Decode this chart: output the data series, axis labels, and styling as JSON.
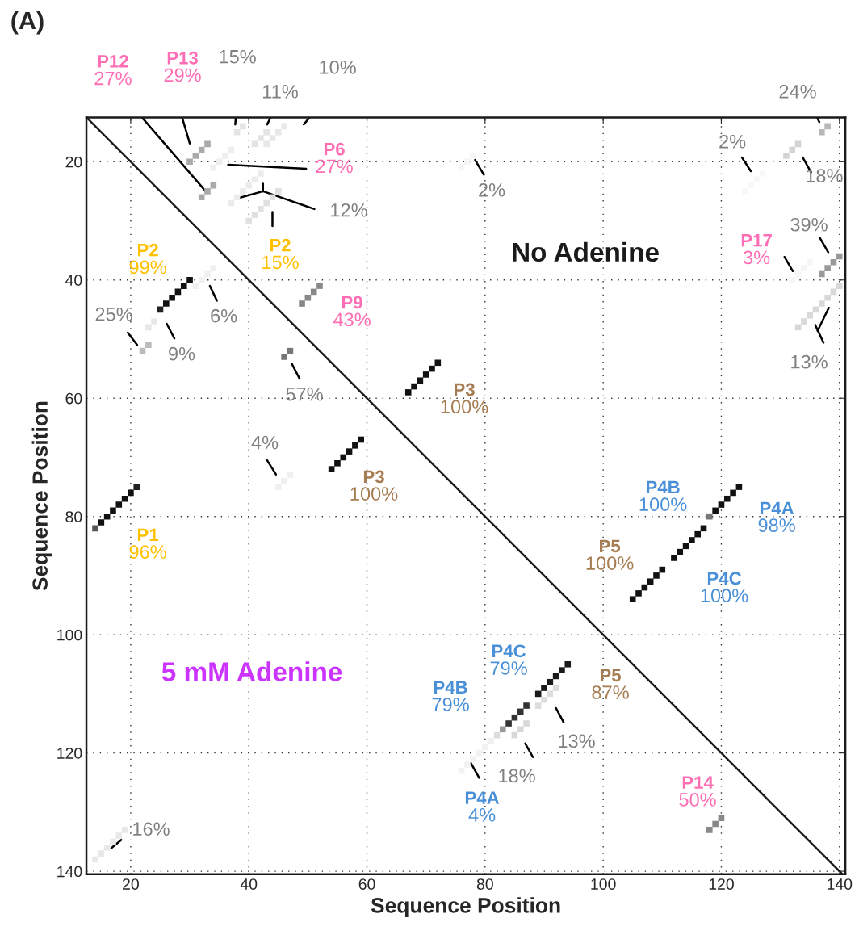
{
  "chart_data": {
    "type": "scatter",
    "title": "(A)",
    "xlabel": "Sequence Position",
    "ylabel": "Sequence Position",
    "xlim": [
      12.5,
      141
    ],
    "ylim": [
      140.5,
      12.5
    ],
    "xticks": [
      20,
      40,
      60,
      80,
      100,
      120,
      140
    ],
    "yticks": [
      20,
      40,
      60,
      80,
      100,
      120,
      140
    ],
    "grid": true,
    "series": [
      {
        "type": "line",
        "color": "#1a1a1a",
        "x": [
          12.5,
          140.5
        ],
        "values": [
          12.5,
          140.5
        ]
      },
      {
        "type": "scatter",
        "marker": "square",
        "x": [
          14,
          15,
          16,
          17,
          18,
          19,
          20,
          21
        ],
        "values": [
          82,
          81,
          80,
          79,
          78,
          77,
          76,
          75
        ],
        "colors": [
          "#555555",
          "#111111",
          "#111111",
          "#111111",
          "#111111",
          "#111111",
          "#111111",
          "#222222"
        ]
      },
      {
        "type": "scatter",
        "marker": "square",
        "x": [
          25,
          26,
          27,
          28,
          29,
          30
        ],
        "values": [
          45,
          44,
          43,
          42,
          41,
          40
        ],
        "colors": [
          "#222222",
          "#111111",
          "#111111",
          "#111111",
          "#111111",
          "#111111"
        ]
      },
      {
        "type": "scatter",
        "marker": "square",
        "x": [
          23,
          24
        ],
        "values": [
          48,
          47
        ],
        "colors": [
          "#e8e8e8",
          "#e8e8e8"
        ]
      },
      {
        "type": "scatter",
        "marker": "square",
        "x": [
          22,
          23
        ],
        "values": [
          52,
          51
        ],
        "colors": [
          "#bbbbbb",
          "#bbbbbb"
        ]
      },
      {
        "type": "scatter",
        "marker": "square",
        "x": [
          31,
          32,
          33,
          34
        ],
        "values": [
          41,
          40,
          39,
          38
        ],
        "colors": [
          "#f0f0f0",
          "#f0f0f0",
          "#f0f0f0",
          "#f0f0f0"
        ]
      },
      {
        "type": "scatter",
        "marker": "square",
        "x": [
          46,
          47
        ],
        "values": [
          53,
          52
        ],
        "colors": [
          "#777777",
          "#777777"
        ]
      },
      {
        "type": "scatter",
        "marker": "square",
        "x": [
          45,
          46,
          47
        ],
        "values": [
          75,
          74,
          73
        ],
        "colors": [
          "#f0f0f0",
          "#f0f0f0",
          "#f0f0f0"
        ]
      },
      {
        "type": "scatter",
        "marker": "square",
        "x": [
          54,
          55,
          56,
          57,
          58,
          59
        ],
        "values": [
          72,
          71,
          70,
          69,
          68,
          67
        ],
        "colors": [
          "#111111",
          "#111111",
          "#111111",
          "#111111",
          "#111111",
          "#111111"
        ]
      },
      {
        "type": "scatter",
        "marker": "square",
        "x": [
          89,
          90,
          91,
          92,
          93,
          94
        ],
        "values": [
          110,
          109,
          108,
          107,
          106,
          105
        ],
        "colors": [
          "#1a1a1a",
          "#1a1a1a",
          "#1a1a1a",
          "#1a1a1a",
          "#1a1a1a",
          "#1a1a1a"
        ]
      },
      {
        "type": "scatter",
        "marker": "square",
        "x": [
          81,
          82,
          83,
          84,
          85,
          86,
          87
        ],
        "values": [
          118,
          117,
          116,
          115,
          114,
          113,
          112
        ],
        "colors": [
          "#f0f0f0",
          "#dddddd",
          "#999999",
          "#333333",
          "#333333",
          "#333333",
          "#333333"
        ]
      },
      {
        "type": "scatter",
        "marker": "square",
        "x": [
          76,
          77,
          78,
          79,
          80
        ],
        "values": [
          123,
          122,
          121,
          120,
          119
        ],
        "colors": [
          "#f2f2f2",
          "#f2f2f2",
          "#f2f2f2",
          "#f2f2f2",
          "#f2f2f2"
        ]
      },
      {
        "type": "scatter",
        "marker": "square",
        "x": [
          85,
          86,
          87
        ],
        "values": [
          117,
          116,
          115
        ],
        "colors": [
          "#d8d8d8",
          "#d8d8d8",
          "#d8d8d8"
        ]
      },
      {
        "type": "scatter",
        "marker": "square",
        "x": [
          89,
          90,
          91,
          92
        ],
        "values": [
          112,
          111,
          110,
          109
        ],
        "colors": [
          "#dddddd",
          "#dddddd",
          "#dddddd",
          "#dddddd"
        ]
      },
      {
        "type": "scatter",
        "marker": "square",
        "x": [
          118,
          119,
          120
        ],
        "values": [
          133,
          132,
          131
        ],
        "colors": [
          "#888888",
          "#888888",
          "#888888"
        ]
      },
      {
        "type": "scatter",
        "marker": "square",
        "x": [
          14,
          15,
          16,
          17,
          18,
          19
        ],
        "values": [
          138,
          137,
          136,
          135,
          134,
          133
        ],
        "colors": [
          "#e8e8e8",
          "#e8e8e8",
          "#e8e8e8",
          "#e8e8e8",
          "#e8e8e8",
          "#e8e8e8"
        ]
      },
      {
        "type": "scatter",
        "marker": "square",
        "x": [
          67,
          68,
          69,
          70,
          71,
          72
        ],
        "values": [
          59,
          58,
          57,
          56,
          55,
          54
        ],
        "colors": [
          "#111111",
          "#111111",
          "#111111",
          "#111111",
          "#111111",
          "#111111"
        ]
      },
      {
        "type": "scatter",
        "marker": "square",
        "x": [
          49,
          50,
          51,
          52
        ],
        "values": [
          44,
          43,
          42,
          41
        ],
        "colors": [
          "#888888",
          "#888888",
          "#888888",
          "#888888"
        ]
      },
      {
        "type": "scatter",
        "marker": "square",
        "x": [
          40,
          41,
          42,
          43,
          44,
          45
        ],
        "values": [
          30,
          29,
          28,
          27,
          26,
          25
        ],
        "colors": [
          "#e0e0e0",
          "#e0e0e0",
          "#e0e0e0",
          "#e0e0e0",
          "#e0e0e0",
          "#e0e0e0"
        ]
      },
      {
        "type": "scatter",
        "marker": "square",
        "x": [
          37,
          38,
          39,
          40,
          41,
          42
        ],
        "values": [
          27,
          26,
          25,
          24,
          23,
          22
        ],
        "colors": [
          "#ececec",
          "#ececec",
          "#ececec",
          "#ececec",
          "#ececec",
          "#ececec"
        ]
      },
      {
        "type": "scatter",
        "marker": "square",
        "x": [
          30,
          31,
          32,
          33
        ],
        "values": [
          20,
          19,
          18,
          17
        ],
        "colors": [
          "#aaaaaa",
          "#aaaaaa",
          "#aaaaaa",
          "#aaaaaa"
        ]
      },
      {
        "type": "scatter",
        "marker": "square",
        "x": [
          34,
          35,
          36,
          37
        ],
        "values": [
          21,
          20,
          19,
          18
        ],
        "colors": [
          "#eeeeee",
          "#eeeeee",
          "#eeeeee",
          "#eeeeee"
        ]
      },
      {
        "type": "scatter",
        "marker": "square",
        "x": [
          38,
          39
        ],
        "values": [
          15,
          14
        ],
        "colors": [
          "#e4e4e4",
          "#e4e4e4"
        ]
      },
      {
        "type": "scatter",
        "marker": "square",
        "x": [
          32,
          33,
          34
        ],
        "values": [
          26,
          25,
          24
        ],
        "colors": [
          "#aaaaaa",
          "#aaaaaa",
          "#aaaaaa"
        ]
      },
      {
        "type": "scatter",
        "marker": "square",
        "x": [
          41,
          42,
          43
        ],
        "values": [
          17,
          16,
          15
        ],
        "colors": [
          "#e4e4e4",
          "#e4e4e4",
          "#e4e4e4"
        ]
      },
      {
        "type": "scatter",
        "marker": "square",
        "x": [
          43,
          44,
          45,
          46
        ],
        "values": [
          17,
          16,
          15,
          14
        ],
        "colors": [
          "#e8e8e8",
          "#e8e8e8",
          "#e8e8e8",
          "#e8e8e8"
        ]
      },
      {
        "type": "scatter",
        "marker": "square",
        "x": [
          76,
          77,
          78
        ],
        "values": [
          21,
          20,
          19
        ],
        "colors": [
          "#f6f6f6",
          "#f6f6f6",
          "#f6f6f6"
        ]
      },
      {
        "type": "scatter",
        "marker": "square",
        "x": [
          137,
          138
        ],
        "values": [
          15,
          14
        ],
        "colors": [
          "#b8b8b8",
          "#b8b8b8"
        ]
      },
      {
        "type": "scatter",
        "marker": "square",
        "x": [
          131,
          132,
          133
        ],
        "values": [
          19,
          18,
          17
        ],
        "colors": [
          "#d4d4d4",
          "#d4d4d4",
          "#d4d4d4"
        ]
      },
      {
        "type": "scatter",
        "marker": "square",
        "x": [
          124,
          125,
          126,
          127
        ],
        "values": [
          25,
          24,
          23,
          22
        ],
        "colors": [
          "#f8f8f8",
          "#f8f8f8",
          "#f8f8f8",
          "#f8f8f8"
        ]
      },
      {
        "type": "scatter",
        "marker": "square",
        "x": [
          137,
          138,
          139,
          140
        ],
        "values": [
          39,
          38,
          37,
          36
        ],
        "colors": [
          "#999999",
          "#999999",
          "#999999",
          "#999999"
        ]
      },
      {
        "type": "scatter",
        "marker": "square",
        "x": [
          132,
          133,
          134,
          135
        ],
        "values": [
          40,
          39,
          38,
          37
        ],
        "colors": [
          "#f6f6f6",
          "#f6f6f6",
          "#f6f6f6",
          "#f6f6f6"
        ]
      },
      {
        "type": "scatter",
        "marker": "square",
        "x": [
          133,
          134,
          135,
          136,
          137,
          138,
          139,
          140
        ],
        "values": [
          48,
          47,
          46,
          45,
          44,
          43,
          42,
          41
        ],
        "colors": [
          "#d8d8d8",
          "#d8d8d8",
          "#d8d8d8",
          "#d8d8d8",
          "#d8d8d8",
          "#d8d8d8",
          "#d8d8d8",
          "#d8d8d8"
        ]
      },
      {
        "type": "scatter",
        "marker": "square",
        "x": [
          105,
          106,
          107,
          108,
          109,
          110
        ],
        "values": [
          94,
          93,
          92,
          91,
          90,
          89
        ],
        "colors": [
          "#111111",
          "#111111",
          "#111111",
          "#111111",
          "#111111",
          "#111111"
        ]
      },
      {
        "type": "scatter",
        "marker": "square",
        "x": [
          112,
          113,
          114,
          115,
          116,
          117
        ],
        "values": [
          87,
          86,
          85,
          84,
          83,
          82
        ],
        "colors": [
          "#111111",
          "#111111",
          "#111111",
          "#111111",
          "#111111",
          "#111111"
        ]
      },
      {
        "type": "scatter",
        "marker": "square",
        "x": [
          118,
          119,
          120,
          121,
          122,
          123
        ],
        "values": [
          80,
          79,
          78,
          77,
          76,
          75
        ],
        "colors": [
          "#777777",
          "#111111",
          "#111111",
          "#111111",
          "#111111",
          "#111111"
        ]
      },
      {
        "type": "line",
        "color": "#000000",
        "x": [
          21.9,
          32.7
        ],
        "values": [
          12.5,
          25.0
        ]
      },
      {
        "type": "line",
        "color": "#000000",
        "x": [
          28.7,
          30.0
        ],
        "values": [
          12.5,
          16.9
        ]
      },
      {
        "type": "line",
        "color": "#000000",
        "x": [
          37.8,
          37.7
        ],
        "values": [
          12.5,
          13.7
        ]
      },
      {
        "type": "line",
        "color": "#000000",
        "x": [
          43.7,
          43.1
        ],
        "values": [
          12.5,
          13.7
        ]
      },
      {
        "type": "line",
        "color": "#000000",
        "x": [
          50.3,
          49.3
        ],
        "values": [
          12.5,
          13.7
        ]
      },
      {
        "type": "line",
        "color": "#000000",
        "x": [
          36.5,
          49.7
        ],
        "values": [
          20.5,
          21.2
        ]
      },
      {
        "type": "line",
        "color": "#000000",
        "x": [
          38.4,
          42.4,
          51.1
        ],
        "values": [
          26.1,
          25.0,
          28.0
        ]
      },
      {
        "type": "line",
        "color": "#000000",
        "x": [
          42.4,
          42.4
        ],
        "values": [
          23.7,
          25.0
        ]
      },
      {
        "type": "line",
        "color": "#000000",
        "x": [
          44.0,
          44.0
        ],
        "values": [
          28.5,
          30.9
        ]
      },
      {
        "type": "line",
        "color": "#000000",
        "x": [
          19.5,
          21.1
        ],
        "values": [
          48.9,
          51.0
        ]
      },
      {
        "type": "line",
        "color": "#000000",
        "x": [
          26.1,
          27.4
        ],
        "values": [
          47.4,
          49.9
        ]
      },
      {
        "type": "line",
        "color": "#000000",
        "x": [
          33.4,
          34.6
        ],
        "values": [
          41.0,
          43.5
        ]
      },
      {
        "type": "line",
        "color": "#000000",
        "x": [
          47.3,
          48.6
        ],
        "values": [
          54.2,
          56.7
        ]
      },
      {
        "type": "line",
        "color": "#000000",
        "x": [
          43.1,
          44.6
        ],
        "values": [
          70.5,
          72.9
        ]
      },
      {
        "type": "line",
        "color": "#000000",
        "x": [
          18.4,
          16.7
        ],
        "values": [
          134.7,
          136.1
        ]
      },
      {
        "type": "line",
        "color": "#000000",
        "x": [
          78.3,
          79.8
        ],
        "values": [
          19.7,
          22.2
        ]
      },
      {
        "type": "line",
        "color": "#000000",
        "x": [
          123.5,
          125.0
        ],
        "values": [
          19.3,
          21.6
        ]
      },
      {
        "type": "line",
        "color": "#000000",
        "x": [
          136.2,
          136.6
        ],
        "values": [
          12.5,
          13.3
        ]
      },
      {
        "type": "line",
        "color": "#000000",
        "x": [
          133.8,
          135.2
        ],
        "values": [
          19.3,
          21.8
        ]
      },
      {
        "type": "line",
        "color": "#000000",
        "x": [
          136.7,
          138.1
        ],
        "values": [
          32.9,
          35.3
        ]
      },
      {
        "type": "line",
        "color": "#000000",
        "x": [
          130.7,
          132.1
        ],
        "values": [
          36.1,
          38.5
        ]
      },
      {
        "type": "line",
        "color": "#000000",
        "x": [
          137.3,
          135.9
        ],
        "values": [
          50.6,
          47.6
        ]
      },
      {
        "type": "line",
        "color": "#000000",
        "x": [
          136.3,
          138.2
        ],
        "values": [
          48.6,
          44.7
        ]
      },
      {
        "type": "line",
        "color": "#000000",
        "x": [
          92.0,
          93.3
        ],
        "values": [
          112.4,
          114.8
        ]
      },
      {
        "type": "line",
        "color": "#000000",
        "x": [
          86.8,
          88.1
        ],
        "values": [
          118.4,
          120.7
        ]
      },
      {
        "type": "line",
        "color": "#000000",
        "x": [
          77.6,
          79.0
        ],
        "values": [
          121.7,
          124.2
        ]
      }
    ],
    "annotations": [
      "P12\n27%",
      "P13\n29%",
      "15%",
      "11%",
      "10%",
      "P6\n27%",
      "12%",
      "P2\n15%",
      "P2\n99%",
      "25%",
      "9%",
      "6%",
      "P9\n43%",
      "57%",
      "P3\n100%",
      "4%",
      "P3\n100%",
      "P1\n96%",
      "No Adenine",
      "5 mM Adenine",
      "2%",
      "2%",
      "24%",
      "18%",
      "39%",
      "P17\n3%",
      "13%",
      "P4B\n100%",
      "P4A\n98%",
      "P5\n100%",
      "P4C\n100%",
      "P4C\n79%",
      "P5\n87%",
      "P4B\n79%",
      "13%",
      "18%",
      "P4A\n4%",
      "P14\n50%",
      "16%"
    ]
  }
}
